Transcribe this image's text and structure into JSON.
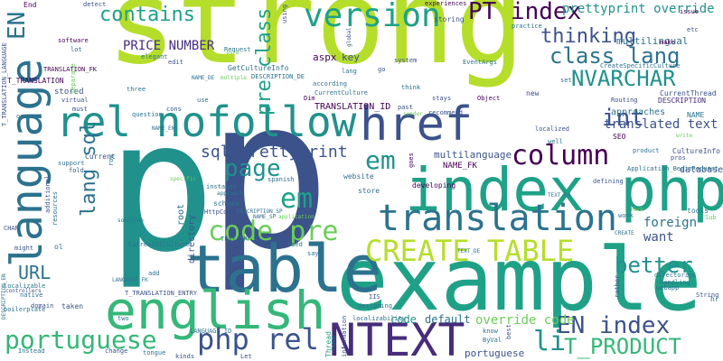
{
  "colors": {
    "lime": "#b5de2b",
    "green": "#6ccd5a",
    "emerald": "#1fa187",
    "teal": "#21918c",
    "steel": "#2c728e",
    "indigo": "#3b528b",
    "violet": "#472d7b",
    "dark": "#440154",
    "mint": "#35b779"
  },
  "words": {
    "strong": "strong",
    "p": "p",
    "example": "example",
    "index_php": "index php",
    "table": "table",
    "language": "language",
    "english": "english",
    "rel_nofollow": "rel nofollow",
    "href": "href",
    "translation": "translation",
    "create_table": "CREATE TABLE",
    "ntext": "NTEXT",
    "version": "version",
    "pt_index": "PT index",
    "contains": "contains",
    "thinking": "thinking",
    "class_lang": "class lang",
    "nvarchar": "NVARCHAR",
    "column": "column",
    "code_pre": "code pre",
    "en_index": "EN index",
    "t_product": "T_PRODUCT",
    "better": "better",
    "portuguese": "portuguese",
    "php_rel": "php rel",
    "li": "li",
    "page": "page",
    "em_1": "em",
    "em_2": "em",
    "int": "int",
    "url": "URL",
    "lang_sql": "lang sql",
    "sql_prettyprint": "sql prettyprint",
    "pre_class": "pre class",
    "en": "EN",
    "prettyprint_override": "prettyprint override",
    "price_number": "PRICE NUMBER",
    "aspx": "aspx",
    "key": "key",
    "translated_text": "translated text",
    "override_code": "override code",
    "multilingual": "multilingual",
    "multilanguage": "multilanguage",
    "t_translation_id": "TRANSLATION_ID",
    "name_fk": "NAME_FK",
    "code": "code",
    "default": "default",
    "portuguese_small": "portuguese",
    "foreign": "foreign",
    "want": "want",
    "database": "database",
    "approaches": "approaches",
    "description": "DESCRIPTION",
    "currentthread": "CurrentThread",
    "name": "NAME",
    "t_translation": "T_TRANSLATION",
    "stored": "stored",
    "current": "Current",
    "directory": "directory",
    "root": "root",
    "schema": "schema",
    "website": "website",
    "developing": "developing",
    "store": "store",
    "culture_info": "CultureInfo",
    "getcultureinfo": "GetCultureInfo",
    "translation_fk": "TRANSLATION_FK",
    "t_translation_language": "T_TRANSLATION_LANGUAGE",
    "software": "software",
    "tools": "tools",
    "webapp": "webapp",
    "string": "String",
    "issue": "issue",
    "experiences": "experiences",
    "detect": "detect",
    "using": "using",
    "storing": "storing",
    "end": "End",
    "request": "Request",
    "global": "global",
    "etc": "etc",
    "make": "make",
    "practice": "practice",
    "createspecificculture": "CreateSpecificCulture",
    "routing": "Routing",
    "localized": "localized",
    "seo": "SEO",
    "product": "product",
    "instance": "instance",
    "spanish": "spanish",
    "specific": "specific",
    "approach": "approach",
    "solution": "solution",
    "localizable": "localizable",
    "boilerplate": "boilerplate",
    "native": "native",
    "domain": "domain",
    "controllers": "controllers",
    "taken": "taken",
    "instead": "Instead",
    "support": "support",
    "lot": "lot",
    "virtual": "virtual",
    "one": "one",
    "must": "must",
    "three": "three",
    "elegant": "elegant",
    "cons": "cons",
    "question": "question",
    "system": "system",
    "eventargs": "EventArgs",
    "according": "according",
    "currentculture": "CurrentCulture",
    "stays": "stays",
    "object": "Object",
    "new": "new",
    "set": "set",
    "recommend": "recommend",
    "past": "past",
    "pros": "pros",
    "write": "write",
    "httpcontext": "HttpContext",
    "say": "say",
    "need": "need",
    "home": "home",
    "information": "information",
    "threads": "Thread",
    "byval": "ByVal",
    "know": "know",
    "best": "best",
    "designing": "designing",
    "localizability": "localizability",
    "iis": "IIS",
    "rather": "rather",
    "work": "work",
    "hack": "Hack",
    "handling": "handling",
    "directories": "directories",
    "hr": "hr",
    "defining": "defining",
    "goes": "goes",
    "application_beginrequest": "Application_BeginRequest",
    "currentuiculture": "CurrentUICulture",
    "text_sp": "TEXT_SP",
    "text_en": "TEXT_EN",
    "text_de": "TEXT_DE",
    "t_translation_entry": "T_TRANSLATION_ENTRY",
    "language_fk": "LANGUAGE_FK",
    "language_id": "LANGUAGE_ID",
    "description_sp": "DESCRIPTION_SP",
    "description_en": "DESCRIPTION_EN",
    "description_de": "DESCRIPTION_DE",
    "name_en": "NAME_EN",
    "name_sp": "NAME_SP",
    "name_de": "NAME_DE",
    "application": "application",
    "two": "two",
    "add": "add",
    "might": "might",
    "kinds": "kinds",
    "change": "change",
    "tongue": "tongue",
    "let": "Let",
    "ol": "ol",
    "char": "CHAR",
    "fold": "fold",
    "resources": "resources",
    "additional": "additional",
    "row": "row",
    "sub": "Sub",
    "create": "CREATE",
    "edit": "edit",
    "separate": "separate",
    "sure": "sure",
    "lang": "lang",
    "think": "think",
    "go": "go",
    "dim": "Dim",
    "use": "use",
    "sender": "sender",
    "well": "well",
    "multiple": "multiple"
  }
}
